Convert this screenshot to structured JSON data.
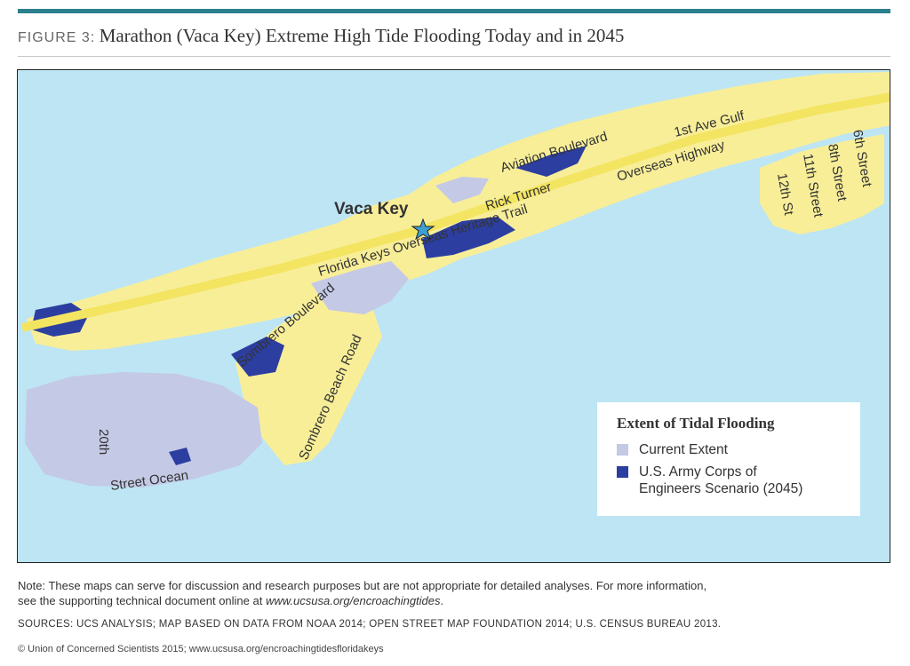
{
  "figure": {
    "label": "FIGURE 3:",
    "title": "Marathon (Vaca Key) Extreme High Tide Flooding Today and in 2045"
  },
  "map": {
    "place_label": "Vaca Key",
    "street_labels": {
      "florida_keys_overseas_heritage_trail": "Florida Keys Overseas Heritage Trail",
      "overseas_highway": "Overseas Highway",
      "aviation_boulevard": "Aviation Boulevard",
      "first_ave_gulf": "1st Ave Gulf",
      "rick_turner": "Rick Turner",
      "sombrero_boulevard": "Sombrero Boulevard",
      "sombrero_beach_road": "Sombrero Beach Road",
      "street_20th": "20th",
      "street_ocean": "Street Ocean",
      "st_12th": "12th St",
      "street_11th": "11th Street",
      "street_8th": "8th Street",
      "street_6th": "6th Street"
    },
    "colors": {
      "water": "#bde5f4",
      "land": "#f8ee98",
      "current_extent": "#c4c9e6",
      "scenario_2045": "#2c3ea0",
      "road": "#f3e462"
    }
  },
  "legend": {
    "title": "Extent of Tidal Flooding",
    "items": [
      {
        "label": "Current Extent",
        "color": "#c4c9e6"
      },
      {
        "label_line1": "U.S. Army Corps of",
        "label_line2": "Engineers Scenario (2045)",
        "color": "#2c3ea0"
      }
    ]
  },
  "note": {
    "line1": "Note: These maps can serve for discussion and research purposes but are not appropriate for detailed analyses. For more information,",
    "line2_prefix": "see the supporting technical document online at ",
    "line2_link": "www.ucsusa.org/encroachingtides",
    "line2_suffix": "."
  },
  "sources": "SOURCES: UCS ANALYSIS; MAP BASED ON DATA FROM NOAA 2014; OPEN STREET MAP FOUNDATION 2014; U.S. CENSUS BUREAU 2013.",
  "copyright": "© Union of Concerned Scientists 2015; www.ucsusa.org/encroachingtidesfloridakeys"
}
